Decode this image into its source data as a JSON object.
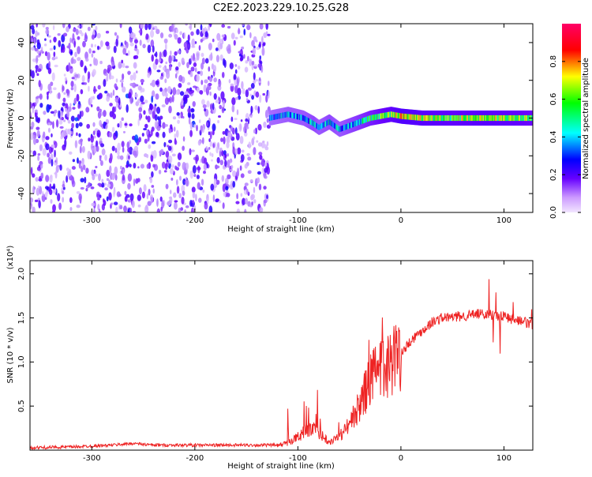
{
  "chart_data": [
    {
      "type": "heatmap",
      "title": "C2E2.2023.229.10.25.G28",
      "xlabel": "Height of straight line (km)",
      "ylabel": "Frequency (Hz)",
      "xlim": [
        -360,
        128
      ],
      "ylim": [
        -50,
        50
      ],
      "xticks": [
        -300,
        -200,
        -100,
        0,
        100
      ],
      "yticks": [
        -40,
        -20,
        0,
        20,
        40
      ],
      "colorbar": {
        "label": "Normalized spectral amplitude",
        "range": [
          0.0,
          1.0
        ],
        "ticks": [
          0.0,
          0.2,
          0.4,
          0.6,
          0.8
        ],
        "tick_labels": [
          "0.0",
          "0.2",
          "0.4",
          "0.6",
          "0.8"
        ],
        "colors": [
          "#f2e6ff",
          "#6600ff",
          "#0000ff",
          "#00ffff",
          "#00ff00",
          "#ffff00",
          "#ff0000",
          "#ff0066"
        ]
      },
      "ridge": {
        "description": "signal track",
        "x": [
          -128,
          -110,
          -95,
          -85,
          -80,
          -70,
          -60,
          -50,
          -40,
          -30,
          -20,
          -10,
          0,
          20,
          50,
          80,
          128
        ],
        "frequency": [
          0,
          2,
          0,
          -3,
          -5,
          -2,
          -6,
          -4,
          -2,
          0,
          1,
          2,
          1,
          0,
          0,
          0,
          0
        ],
        "amplitude": [
          0.3,
          0.35,
          0.35,
          0.4,
          0.35,
          0.4,
          0.35,
          0.4,
          0.45,
          0.5,
          0.55,
          0.6,
          0.7,
          0.65,
          0.6,
          0.65,
          0.55
        ]
      },
      "noise_region": {
        "x": [
          -360,
          -128
        ],
        "amplitude_range": [
          0.02,
          0.3
        ]
      }
    },
    {
      "type": "line",
      "xlabel": "Height of straight line (km)",
      "ylabel": "SNR (10 * v/v)",
      "yscale_label": "(x10⁴)",
      "xlim": [
        -360,
        128
      ],
      "ylim": [
        0,
        2.15
      ],
      "xticks": [
        -300,
        -200,
        -100,
        0,
        100
      ],
      "yticks": [
        0.5,
        1.0,
        1.5,
        2.0
      ],
      "ytick_labels": [
        "0.5",
        "1.0",
        "1.5",
        "2.0"
      ],
      "color": "#ee2222",
      "series": [
        {
          "name": "SNR",
          "x": [
            -360,
            -320,
            -280,
            -260,
            -240,
            -200,
            -150,
            -120,
            -110,
            -100,
            -90,
            -80,
            -70,
            -60,
            -50,
            -40,
            -30,
            -20,
            -10,
            0,
            10,
            20,
            30,
            40,
            60,
            80,
            100,
            110,
            120,
            128
          ],
          "y": [
            0.02,
            0.03,
            0.05,
            0.07,
            0.05,
            0.05,
            0.05,
            0.05,
            0.08,
            0.15,
            0.25,
            0.2,
            0.1,
            0.15,
            0.3,
            0.5,
            0.8,
            0.9,
            1.0,
            1.1,
            1.25,
            1.35,
            1.45,
            1.5,
            1.52,
            1.55,
            1.52,
            1.48,
            1.45,
            1.42
          ]
        }
      ]
    }
  ]
}
